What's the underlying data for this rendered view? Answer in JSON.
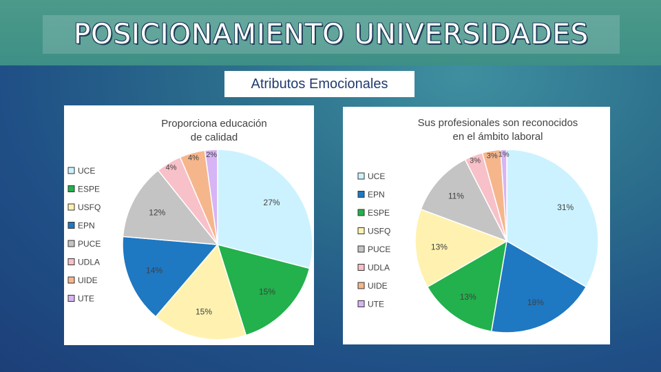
{
  "header": {
    "title": "POSICIONAMIENTO UNIVERSIDADES"
  },
  "section": {
    "subtitle": "Atributos Emocionales"
  },
  "chart_data": [
    {
      "type": "pie",
      "title_lines": [
        "Proporciona educación",
        "de calidad"
      ],
      "legend_position": "left",
      "legend": [
        "UCE",
        "ESPE",
        "USFQ",
        "EPN",
        "PUCE",
        "UDLA",
        "UIDE",
        "UTE"
      ],
      "slices": [
        {
          "name": "UCE",
          "value": 27,
          "label": "27%",
          "color": "#ccf2ff"
        },
        {
          "name": "ESPE",
          "value": 15,
          "label": "15%",
          "color": "#22b14c"
        },
        {
          "name": "USFQ",
          "value": 15,
          "label": "15%",
          "color": "#fff2b0"
        },
        {
          "name": "EPN",
          "value": 14,
          "label": "14%",
          "color": "#1f78c2"
        },
        {
          "name": "PUCE",
          "value": 12,
          "label": "12%",
          "color": "#c4c4c4"
        },
        {
          "name": "UDLA",
          "value": 4,
          "label": "4%",
          "color": "#f8c0c8"
        },
        {
          "name": "UIDE",
          "value": 4,
          "label": "4%",
          "color": "#f5b68c"
        },
        {
          "name": "UTE",
          "value": 2,
          "label": "2%",
          "color": "#d6b4f5"
        }
      ]
    },
    {
      "type": "pie",
      "title_lines": [
        "Sus profesionales son reconocidos",
        "en el ámbito laboral"
      ],
      "legend_position": "left",
      "legend": [
        "UCE",
        "EPN",
        "ESPE",
        "USFQ",
        "PUCE",
        "UDLA",
        "UIDE",
        "UTE"
      ],
      "slices": [
        {
          "name": "UCE",
          "value": 31,
          "label": "31%",
          "color": "#ccf2ff"
        },
        {
          "name": "EPN",
          "value": 18,
          "label": "18%",
          "color": "#1f78c2"
        },
        {
          "name": "ESPE",
          "value": 13,
          "label": "13%",
          "color": "#22b14c"
        },
        {
          "name": "USFQ",
          "value": 13,
          "label": "13%",
          "color": "#fff2b0"
        },
        {
          "name": "PUCE",
          "value": 11,
          "label": "11%",
          "color": "#c4c4c4"
        },
        {
          "name": "UDLA",
          "value": 3,
          "label": "3%",
          "color": "#f8c0c8"
        },
        {
          "name": "UIDE",
          "value": 3,
          "label": "3%",
          "color": "#f5b68c"
        },
        {
          "name": "UTE",
          "value": 1,
          "label": "1%",
          "color": "#d6b4f5"
        }
      ]
    }
  ]
}
